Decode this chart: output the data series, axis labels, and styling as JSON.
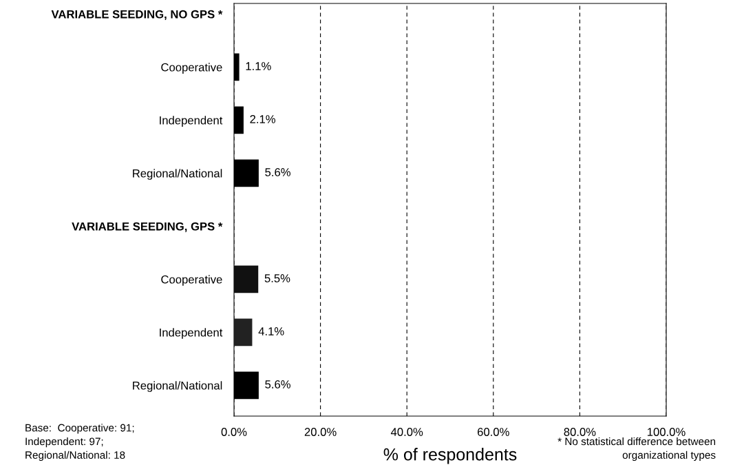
{
  "chart_data": {
    "type": "bar",
    "orientation": "horizontal",
    "categories": [
      "VARIABLE SEEDING, NO GPS *",
      "Cooperative",
      "Independent",
      "Regional/National",
      "VARIABLE SEEDING, GPS *",
      "Cooperative",
      "Independent",
      "Regional/National"
    ],
    "values": [
      null,
      1.1,
      2.1,
      5.6,
      null,
      5.5,
      4.1,
      5.6
    ],
    "value_labels": [
      null,
      "1.1%",
      "2.1%",
      "5.6%",
      null,
      "5.5%",
      "4.1%",
      "5.6%"
    ],
    "colors": [
      "#000000",
      "#000000",
      "#000000",
      "#000000",
      "#000000",
      "#111111",
      "#222222",
      "#000000"
    ],
    "xlabel": "% of respondents",
    "xlim": [
      0,
      100
    ],
    "xticks": [
      {
        "value": 0,
        "label": "0.0%"
      },
      {
        "value": 20,
        "label": "20.0%"
      },
      {
        "value": 40,
        "label": "40.0%"
      },
      {
        "value": 60,
        "label": "60.0%"
      },
      {
        "value": 80,
        "label": "80.0%"
      },
      {
        "value": 100,
        "label": "100.0%"
      }
    ],
    "grid": "x",
    "legend": false,
    "annotations": [
      "Base:  Cooperative: 91;\nIndependent: 97;\nRegional/National: 18",
      "* No statistical difference between\norganizational types"
    ]
  }
}
